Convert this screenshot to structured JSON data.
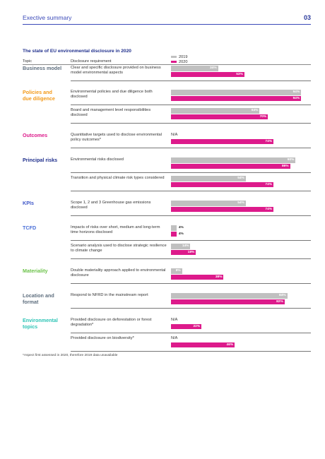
{
  "header": {
    "section": "Exective summary",
    "page": "03"
  },
  "chart_data": {
    "type": "bar",
    "title": "The state of EU environmental disclosure in 2020",
    "columns": {
      "topic": "Topic",
      "requirement": "Disclosure requirement"
    },
    "series": [
      {
        "name": "2019",
        "color": "#c0c0c0"
      },
      {
        "name": "2020",
        "color": "#dd1a8b"
      }
    ],
    "value_unit": "%",
    "xlim": [
      0,
      100
    ],
    "groups": [
      {
        "topic": "Business model",
        "color": "#5f6f7f",
        "items": [
          {
            "requirement": "Clear and specific disclosure provided on business model environmental aspects",
            "v2019": 34,
            "v2020": 53
          }
        ]
      },
      {
        "topic": "Policies and due diligence",
        "color": "#f39a1a",
        "items": [
          {
            "requirement": "Environmental policies and due diligence both disclosed",
            "v2019": 94,
            "v2020": 94
          },
          {
            "requirement": "Board and management level responsibilities disclosed",
            "v2019": 64,
            "v2020": 70
          }
        ]
      },
      {
        "topic": "Outcomes",
        "color": "#dd1a8b",
        "items": [
          {
            "requirement": "Quantitative targets used to disclose environmental policy outcomes*",
            "v2019": null,
            "v2020": 74,
            "na_label": "N/A"
          }
        ]
      },
      {
        "topic": "Principal risks",
        "color": "#1f2f8c",
        "items": [
          {
            "requirement": "Environmental risks disclosed",
            "v2019": 90,
            "v2020": 86
          },
          {
            "requirement": "Transition and physical climate risk types considered",
            "v2019": 54,
            "v2020": 74
          }
        ]
      },
      {
        "topic": "KPIs",
        "color": "#3f57c8",
        "items": [
          {
            "requirement": "Scope 1, 2 and 3 Greenhouse gas emissions disclosed",
            "v2019": 54,
            "v2020": 74
          }
        ]
      },
      {
        "topic": "TCFD",
        "color": "#4a6fd8",
        "items": [
          {
            "requirement": "Impacts of risks over short, medium and long-term time horizons disclosed",
            "v2019": 4,
            "v2020": 4
          },
          {
            "requirement": "Scenario analysis used to disclose strategic resilience to climate change",
            "v2019": 14,
            "v2020": 18
          }
        ]
      },
      {
        "topic": "Materiality",
        "color": "#6cc24a",
        "items": [
          {
            "requirement": "Double materiality approach applied to environmental disclosure",
            "v2019": 8,
            "v2020": 38
          }
        ]
      },
      {
        "topic": "Location and format",
        "color": "#5f6f7f",
        "items": [
          {
            "requirement": "Respond to NFRD in the mainstream report",
            "v2019": 84,
            "v2020": 82
          }
        ]
      },
      {
        "topic": "Environmental topics",
        "color": "#2ec4b6",
        "items": [
          {
            "requirement": "Provided disclosure on deforestation or forest degradation*",
            "v2019": null,
            "v2020": 22,
            "na_label": "N/A"
          },
          {
            "requirement": "Provided disclosure on biodiversity*",
            "v2019": null,
            "v2020": 46,
            "na_label": "N/A"
          }
        ]
      }
    ],
    "footnote": "*Aspect first assessed in 2020, therefore 2019 data unavailable"
  }
}
